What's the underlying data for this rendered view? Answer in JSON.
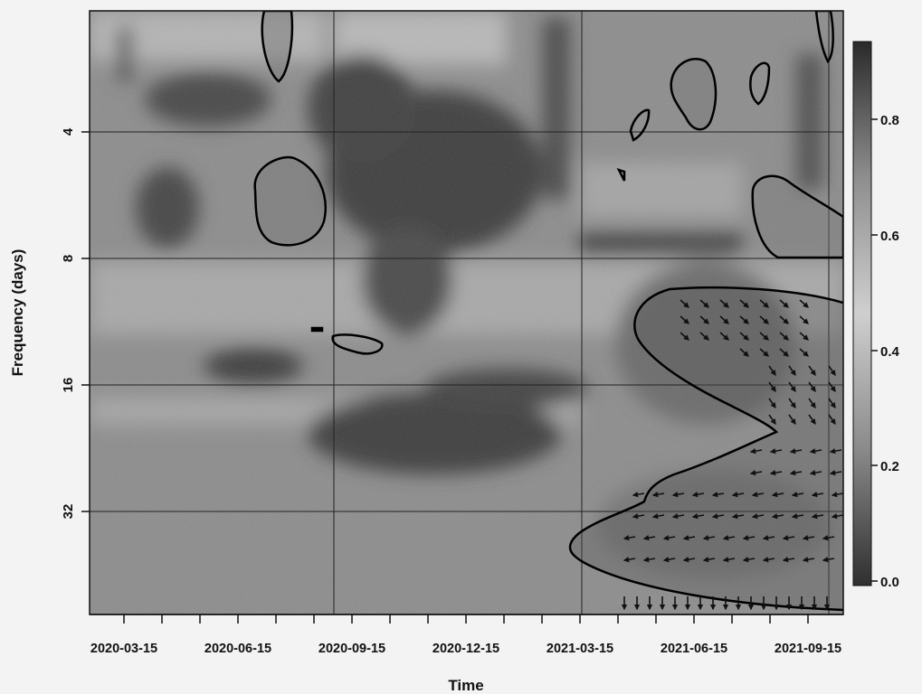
{
  "chart_data": {
    "type": "heatmap",
    "subtype": "wavelet-coherence",
    "title": "",
    "xlabel": "Time",
    "ylabel": "Frequency (days)",
    "x_tick_labels": [
      "2020-03-15",
      "2020-06-15",
      "2020-09-15",
      "2020-12-15",
      "2021-03-15",
      "2021-06-15",
      "2021-09-15"
    ],
    "y_ticks": [
      4,
      8,
      16,
      32
    ],
    "y_scale": "log2",
    "y_range": [
      2.6,
      90
    ],
    "y_reversed": true,
    "grid": true,
    "colorbar": {
      "ticks": [
        0.0,
        0.2,
        0.4,
        0.6,
        0.8
      ],
      "range": [
        0.0,
        0.92
      ],
      "colors": [
        "#2f2f2f",
        "#8a8a8a",
        "#cfcfcf",
        "#8e8e8e",
        "#2a2a2a"
      ]
    },
    "significance_contours": 8,
    "phase_arrows_region": "2021-04 to 2021-10, periods 10-70 days"
  }
}
